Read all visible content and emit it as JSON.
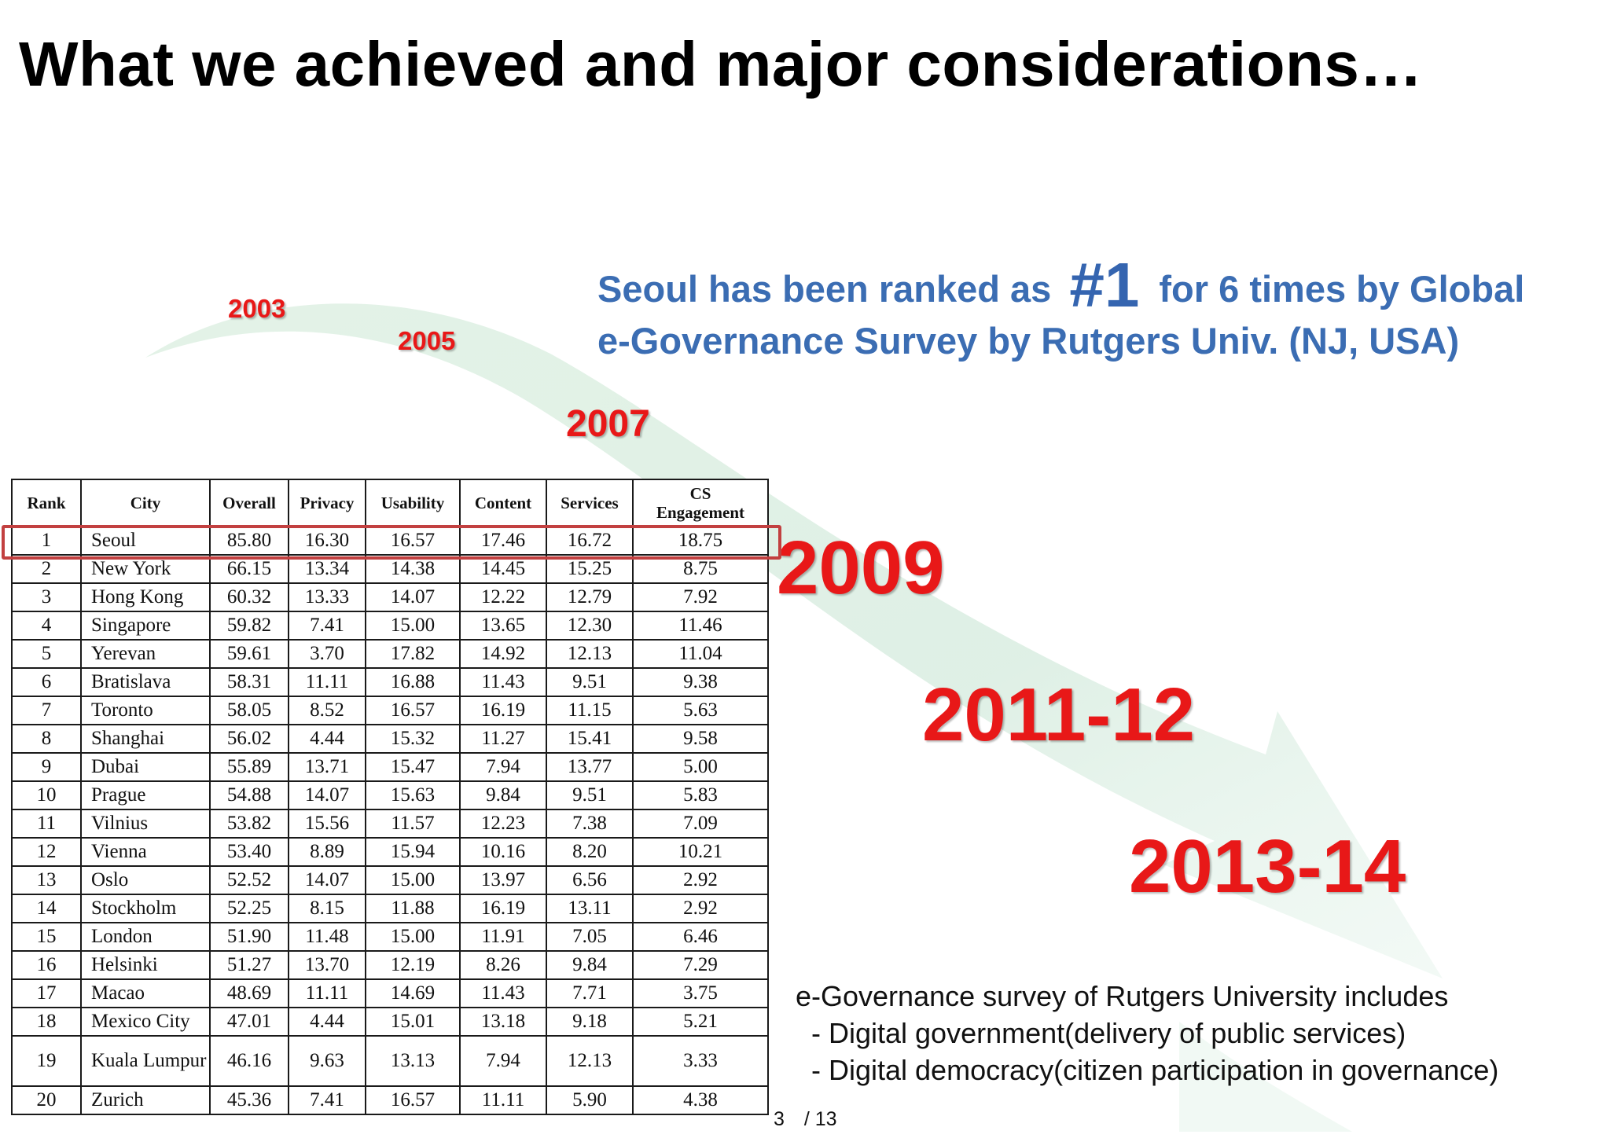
{
  "slide": {
    "title": "What we achieved and major considerations…",
    "headline": {
      "prefix": "Seoul has been ranked as",
      "rank": "#1",
      "suffix": "for 6 times by Global",
      "line2": "e-Governance Survey by Rutgers Univ. (NJ, USA)"
    },
    "years": [
      "2003",
      "2005",
      "2007",
      "2009",
      "2011-12",
      "2013-14"
    ],
    "table": {
      "headers": [
        "Rank",
        "City",
        "Overall",
        "Privacy",
        "Usability",
        "Content",
        "Services",
        "CS Engagement"
      ],
      "rows": [
        [
          "1",
          "Seoul",
          "85.80",
          "16.30",
          "16.57",
          "17.46",
          "16.72",
          "18.75"
        ],
        [
          "2",
          "New York",
          "66.15",
          "13.34",
          "14.38",
          "14.45",
          "15.25",
          "8.75"
        ],
        [
          "3",
          "Hong Kong",
          "60.32",
          "13.33",
          "14.07",
          "12.22",
          "12.79",
          "7.92"
        ],
        [
          "4",
          "Singapore",
          "59.82",
          "7.41",
          "15.00",
          "13.65",
          "12.30",
          "11.46"
        ],
        [
          "5",
          "Yerevan",
          "59.61",
          "3.70",
          "17.82",
          "14.92",
          "12.13",
          "11.04"
        ],
        [
          "6",
          "Bratislava",
          "58.31",
          "11.11",
          "16.88",
          "11.43",
          "9.51",
          "9.38"
        ],
        [
          "7",
          "Toronto",
          "58.05",
          "8.52",
          "16.57",
          "16.19",
          "11.15",
          "5.63"
        ],
        [
          "8",
          "Shanghai",
          "56.02",
          "4.44",
          "15.32",
          "11.27",
          "15.41",
          "9.58"
        ],
        [
          "9",
          "Dubai",
          "55.89",
          "13.71",
          "15.47",
          "7.94",
          "13.77",
          "5.00"
        ],
        [
          "10",
          "Prague",
          "54.88",
          "14.07",
          "15.63",
          "9.84",
          "9.51",
          "5.83"
        ],
        [
          "11",
          "Vilnius",
          "53.82",
          "15.56",
          "11.57",
          "12.23",
          "7.38",
          "7.09"
        ],
        [
          "12",
          "Vienna",
          "53.40",
          "8.89",
          "15.94",
          "10.16",
          "8.20",
          "10.21"
        ],
        [
          "13",
          "Oslo",
          "52.52",
          "14.07",
          "15.00",
          "13.97",
          "6.56",
          "2.92"
        ],
        [
          "14",
          "Stockholm",
          "52.25",
          "8.15",
          "11.88",
          "16.19",
          "13.11",
          "2.92"
        ],
        [
          "15",
          "London",
          "51.90",
          "11.48",
          "15.00",
          "11.91",
          "7.05",
          "6.46"
        ],
        [
          "16",
          "Helsinki",
          "51.27",
          "13.70",
          "12.19",
          "8.26",
          "9.84",
          "7.29"
        ],
        [
          "17",
          "Macao",
          "48.69",
          "11.11",
          "14.69",
          "11.43",
          "7.71",
          "3.75"
        ],
        [
          "18",
          "Mexico City",
          "47.01",
          "4.44",
          "15.01",
          "13.18",
          "9.18",
          "5.21"
        ],
        [
          "19",
          "Kuala Lumpur",
          "46.16",
          "9.63",
          "13.13",
          "7.94",
          "12.13",
          "3.33"
        ],
        [
          "20",
          "Zurich",
          "45.36",
          "7.41",
          "16.57",
          "11.11",
          "5.90",
          "4.38"
        ]
      ]
    },
    "note": {
      "lines": [
        "e-Governance survey of Rutgers University includes",
        "  - Digital government(delivery of public services)",
        "  - Digital democracy(citizen participation in governance)"
      ]
    },
    "page": {
      "current": "3",
      "total": "/ 13"
    },
    "colors": {
      "year_red": "#e81818",
      "headline_blue": "#3b6db3",
      "arrow_green": "#e4f3ea",
      "highlight_border": "#c24040"
    }
  }
}
